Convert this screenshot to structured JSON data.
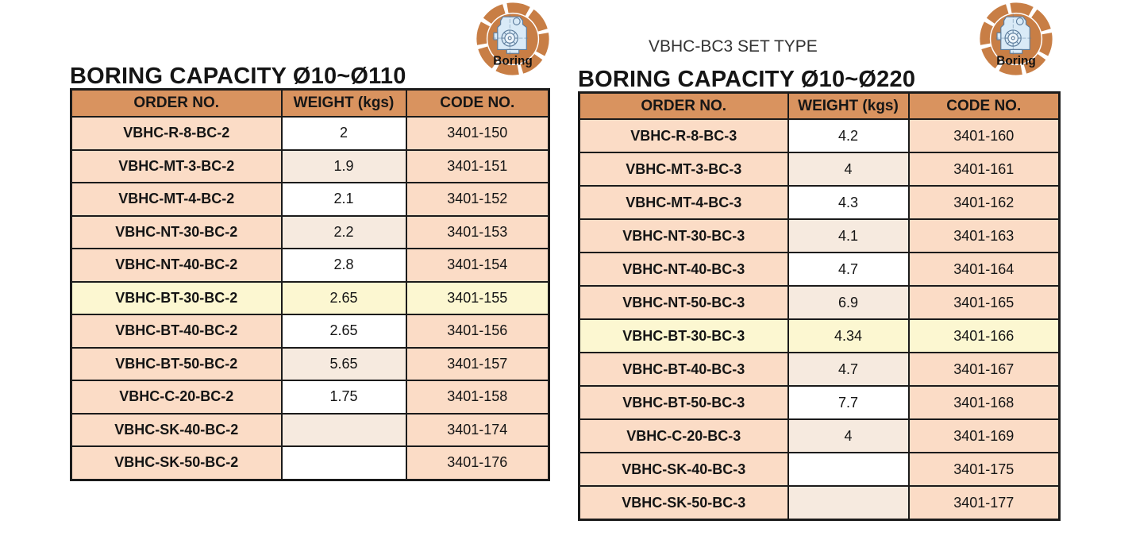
{
  "badge": {
    "label": "Boring"
  },
  "left_table": {
    "title": "BORING CAPACITY Ø10~Ø110",
    "headers": [
      "ORDER NO.",
      "WEIGHT (kgs)",
      "CODE NO."
    ],
    "rows": [
      {
        "order": "VBHC-R-8-BC-2",
        "weight": "2",
        "code": "3401-150",
        "highlighted": false
      },
      {
        "order": "VBHC-MT-3-BC-2",
        "weight": "1.9",
        "code": "3401-151",
        "highlighted": false
      },
      {
        "order": "VBHC-MT-4-BC-2",
        "weight": "2.1",
        "code": "3401-152",
        "highlighted": false
      },
      {
        "order": "VBHC-NT-30-BC-2",
        "weight": "2.2",
        "code": "3401-153",
        "highlighted": false
      },
      {
        "order": "VBHC-NT-40-BC-2",
        "weight": "2.8",
        "code": "3401-154",
        "highlighted": false
      },
      {
        "order": "VBHC-BT-30-BC-2",
        "weight": "2.65",
        "code": "3401-155",
        "highlighted": true
      },
      {
        "order": "VBHC-BT-40-BC-2",
        "weight": "2.65",
        "code": "3401-156",
        "highlighted": false
      },
      {
        "order": "VBHC-BT-50-BC-2",
        "weight": "5.65",
        "code": "3401-157",
        "highlighted": false
      },
      {
        "order": "VBHC-C-20-BC-2",
        "weight": "1.75",
        "code": "3401-158",
        "highlighted": false
      },
      {
        "order": "VBHC-SK-40-BC-2",
        "weight": "",
        "code": "3401-174",
        "highlighted": false
      },
      {
        "order": "VBHC-SK-50-BC-2",
        "weight": "",
        "code": "3401-176",
        "highlighted": false
      }
    ]
  },
  "right_table": {
    "subtitle": "VBHC-BC3 SET TYPE",
    "title": "BORING CAPACITY Ø10~Ø220",
    "headers": [
      "ORDER NO.",
      "WEIGHT (kgs)",
      "CODE NO."
    ],
    "rows": [
      {
        "order": "VBHC-R-8-BC-3",
        "weight": "4.2",
        "code": "3401-160",
        "highlighted": false
      },
      {
        "order": "VBHC-MT-3-BC-3",
        "weight": "4",
        "code": "3401-161",
        "highlighted": false
      },
      {
        "order": "VBHC-MT-4-BC-3",
        "weight": "4.3",
        "code": "3401-162",
        "highlighted": false
      },
      {
        "order": "VBHC-NT-30-BC-3",
        "weight": "4.1",
        "code": "3401-163",
        "highlighted": false
      },
      {
        "order": "VBHC-NT-40-BC-3",
        "weight": "4.7",
        "code": "3401-164",
        "highlighted": false
      },
      {
        "order": "VBHC-NT-50-BC-3",
        "weight": "6.9",
        "code": "3401-165",
        "highlighted": false
      },
      {
        "order": "VBHC-BT-30-BC-3",
        "weight": "4.34",
        "code": "3401-166",
        "highlighted": true
      },
      {
        "order": "VBHC-BT-40-BC-3",
        "weight": "4.7",
        "code": "3401-167",
        "highlighted": false
      },
      {
        "order": "VBHC-BT-50-BC-3",
        "weight": "7.7",
        "code": "3401-168",
        "highlighted": false
      },
      {
        "order": "VBHC-C-20-BC-3",
        "weight": "4",
        "code": "3401-169",
        "highlighted": false
      },
      {
        "order": "VBHC-SK-40-BC-3",
        "weight": "",
        "code": "3401-175",
        "highlighted": false
      },
      {
        "order": "VBHC-SK-50-BC-3",
        "weight": "",
        "code": "3401-177",
        "highlighted": false
      }
    ]
  },
  "colors": {
    "header_bg": "#D9935F",
    "row_peach": "#FBDCC6",
    "weight_white": "#FFFFFF",
    "weight_cream": "#F6EADF",
    "highlight_yellow": "#FCF7D1",
    "border": "#1B1B1B",
    "badge_orange": "#C87E45",
    "badge_drawing_fill": "#D9EAF7",
    "badge_drawing_line": "#5D7D9D"
  }
}
